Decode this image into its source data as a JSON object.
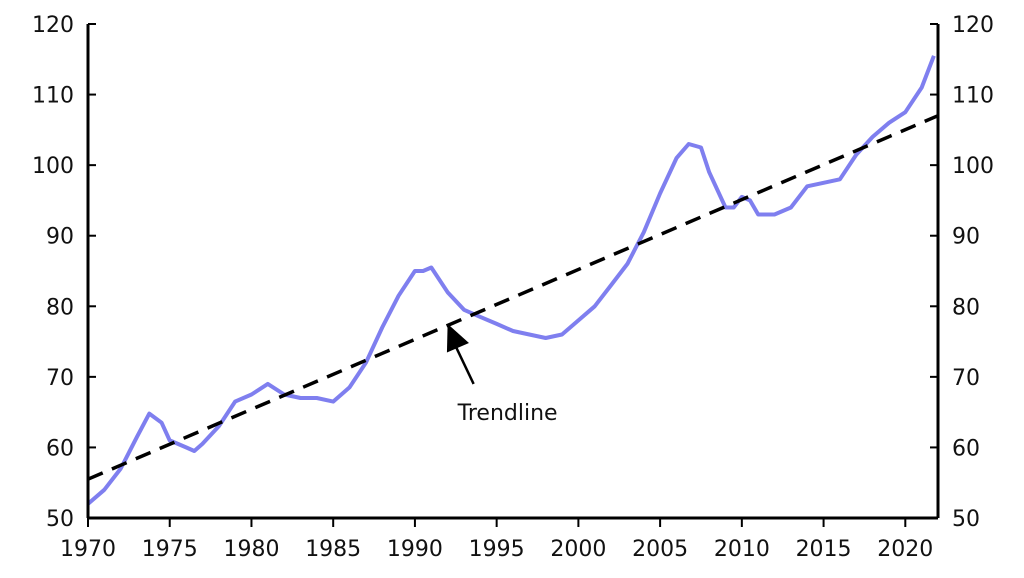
{
  "chart_data": {
    "type": "line",
    "title": "",
    "xlabel": "",
    "ylabel": "",
    "xlim": [
      1970,
      2022
    ],
    "ylim": [
      50,
      120
    ],
    "grid": false,
    "x_ticks": [
      1970,
      1975,
      1980,
      1985,
      1990,
      1995,
      2000,
      2005,
      2010,
      2015,
      2020
    ],
    "y_ticks": [
      50,
      60,
      70,
      80,
      90,
      100,
      110,
      120
    ],
    "y_ticks_right": [
      50,
      60,
      70,
      80,
      90,
      100,
      110,
      120
    ],
    "series": [
      {
        "color": "#7f7fef",
        "style": "solid",
        "x": [
          1970,
          1971,
          1972,
          1973,
          1973.75,
          1974.5,
          1975,
          1976,
          1976.5,
          1977,
          1978,
          1979,
          1980,
          1981,
          1982,
          1983,
          1984,
          1985,
          1986,
          1987,
          1988,
          1989,
          1990,
          1990.5,
          1991,
          1992,
          1993,
          1994,
          1995,
          1996,
          1997,
          1998,
          1999,
          2000,
          2001,
          2002,
          2003,
          2004,
          2005,
          2006,
          2006.75,
          2007.5,
          2008,
          2009,
          2009.5,
          2010,
          2010.5,
          2011,
          2012,
          2013,
          2014,
          2015,
          2016,
          2017,
          2018,
          2019,
          2020,
          2021,
          2021.75
        ],
        "y": [
          52,
          54,
          57,
          61.5,
          64.8,
          63.5,
          61,
          60,
          59.5,
          60.5,
          63,
          66.5,
          67.5,
          69,
          67.5,
          67,
          67,
          66.5,
          68.5,
          72,
          77,
          81.5,
          85,
          85,
          85.5,
          82,
          79.5,
          78.5,
          77.5,
          76.5,
          76,
          75.5,
          76,
          78,
          80,
          83,
          86,
          90.5,
          96,
          101,
          103,
          102.5,
          99,
          94,
          94,
          95.5,
          95,
          93,
          93,
          94,
          97,
          97.5,
          98,
          101.5,
          104,
          106,
          107.5,
          111,
          115.5
        ]
      },
      {
        "color": "#000000",
        "style": "dashed",
        "x": [
          1970,
          2022
        ],
        "y": [
          55.5,
          107
        ]
      }
    ],
    "annotations": [
      {
        "text": "Trendline",
        "target": [
          1992,
          77.5
        ]
      }
    ]
  }
}
